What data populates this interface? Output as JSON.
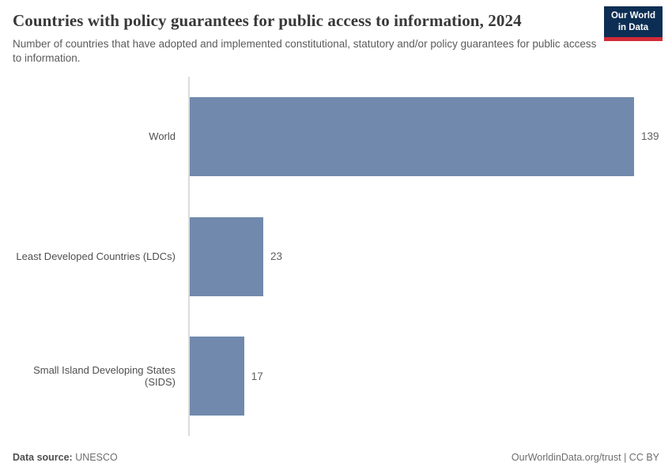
{
  "header": {
    "title": "Countries with policy guarantees for public access to information, 2024",
    "subtitle": "Number of countries that have adopted and implemented constitutional, statutory and/or policy guarantees for public access to information."
  },
  "logo": {
    "line1": "Our World",
    "line2": "in Data",
    "bg_color": "#0d2e54",
    "accent_color": "#d12b36"
  },
  "chart_data": {
    "type": "bar",
    "orientation": "horizontal",
    "categories": [
      "World",
      "Least Developed Countries (LDCs)",
      "Small Island Developing States (SIDS)"
    ],
    "values": [
      139,
      23,
      17
    ],
    "xlim": [
      0,
      139
    ],
    "bar_color": "#7189ac",
    "grid": false,
    "legend": "none",
    "title": "Countries with policy guarantees for public access to information, 2024",
    "xlabel": "",
    "ylabel": ""
  },
  "footer": {
    "source_label": "Data source:",
    "source_value": "UNESCO",
    "credit": "OurWorldinData.org/trust | CC BY"
  }
}
